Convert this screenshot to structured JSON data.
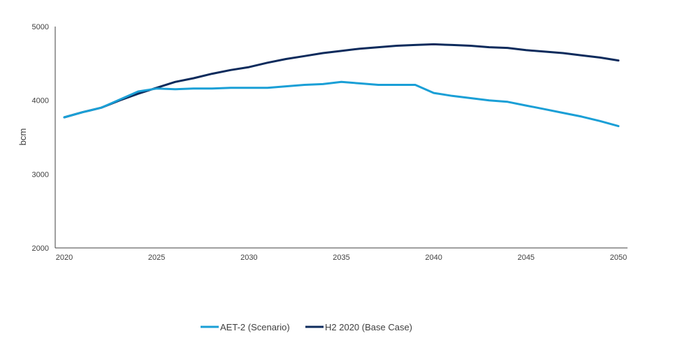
{
  "chart_data": {
    "type": "line",
    "title": "",
    "xlabel": "",
    "ylabel": "bcm",
    "xlim": [
      2020,
      2050
    ],
    "ylim": [
      2000,
      5000
    ],
    "x_ticks": [
      "2020",
      "2025",
      "2030",
      "2035",
      "2040",
      "2045",
      "2050"
    ],
    "y_ticks": [
      "2000",
      "3000",
      "4000",
      "5000"
    ],
    "grid": false,
    "legend_position": "bottom",
    "x": [
      2020,
      2021,
      2022,
      2023,
      2024,
      2025,
      2026,
      2027,
      2028,
      2029,
      2030,
      2031,
      2032,
      2033,
      2034,
      2035,
      2036,
      2037,
      2038,
      2039,
      2040,
      2041,
      2042,
      2043,
      2044,
      2045,
      2046,
      2047,
      2048,
      2049,
      2050
    ],
    "series": [
      {
        "name": "AET-2 (Scenario)",
        "color": "#1a9fd6",
        "values": [
          3770,
          3840,
          3900,
          4010,
          4120,
          4160,
          4150,
          4160,
          4160,
          4170,
          4170,
          4170,
          4190,
          4210,
          4220,
          4250,
          4230,
          4210,
          4210,
          4210,
          4100,
          4060,
          4030,
          4000,
          3980,
          3930,
          3880,
          3830,
          3780,
          3720,
          3650
        ]
      },
      {
        "name": "H2 2020 (Base Case)",
        "color": "#0d2b5c",
        "values": [
          3770,
          3840,
          3900,
          4000,
          4090,
          4170,
          4250,
          4300,
          4360,
          4410,
          4450,
          4510,
          4560,
          4600,
          4640,
          4670,
          4700,
          4720,
          4740,
          4750,
          4760,
          4750,
          4740,
          4720,
          4710,
          4680,
          4660,
          4640,
          4610,
          4580,
          4540
        ]
      }
    ]
  }
}
